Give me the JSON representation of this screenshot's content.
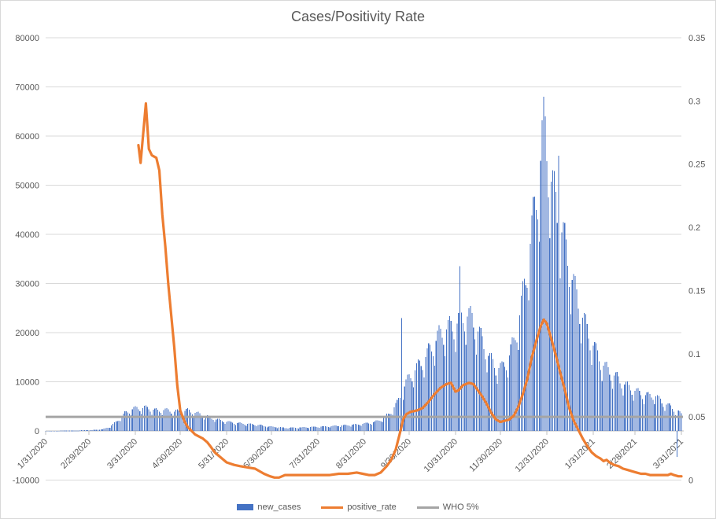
{
  "title": "Cases/Positivity Rate",
  "legend": [
    {
      "label": "new_cases",
      "type": "bar",
      "color": "#4472C4"
    },
    {
      "label": "positive_rate",
      "type": "line",
      "color": "#ED7D31"
    },
    {
      "label": "WHO 5%",
      "type": "line",
      "color": "#A5A5A5"
    }
  ],
  "colors": {
    "bars": "#4472C4",
    "rate_line": "#ED7D31",
    "who_line": "#A5A5A5",
    "gridline": "#D9D9D9",
    "axis_line": "#BFBFBF",
    "text": "#595959",
    "title": "#595959"
  },
  "chart_data": {
    "type": "bar",
    "title": "Cases/Positivity Rate",
    "xlabel": "",
    "ylabel": "",
    "grid": true,
    "legend_position": "bottom",
    "left_axis": {
      "min": -10000,
      "max": 80000,
      "step": 10000,
      "tick_labels": [
        "80000",
        "70000",
        "60000",
        "50000",
        "40000",
        "30000",
        "20000",
        "10000",
        "0",
        "-10000"
      ]
    },
    "right_axis": {
      "min": 0,
      "max": 0.35,
      "step": 0.05,
      "tick_labels": [
        "0.35",
        "0.3",
        "0.25",
        "0.2",
        "0.15",
        "0.1",
        "0.05",
        "0"
      ]
    },
    "x_tick_labels": [
      "1/31/2020",
      "2/29/2020",
      "3/31/2020",
      "4/30/2020",
      "5/31/2020",
      "6/30/2020",
      "7/31/2020",
      "8/31/2020",
      "9/30/2020",
      "10/31/2020",
      "11/30/2020",
      "12/31/2020",
      "1/31/2021",
      "2/28/2021",
      "3/31/2021"
    ],
    "x_tick_days": [
      0,
      29,
      60,
      90,
      121,
      151,
      182,
      213,
      243,
      274,
      304,
      335,
      366,
      394,
      425
    ],
    "days_total": 425,
    "series": [
      {
        "name": "new_cases",
        "axis": "left",
        "render": "daily-bars",
        "anchors": [
          [
            0,
            25
          ],
          [
            10,
            45
          ],
          [
            20,
            90
          ],
          [
            30,
            170
          ],
          [
            38,
            350
          ],
          [
            43,
            900
          ],
          [
            48,
            2200
          ],
          [
            53,
            3800
          ],
          [
            58,
            4700
          ],
          [
            62,
            4900
          ],
          [
            66,
            5000
          ],
          [
            70,
            4800
          ],
          [
            75,
            4300
          ],
          [
            78,
            4600
          ],
          [
            82,
            4400
          ],
          [
            86,
            4200
          ],
          [
            90,
            4200
          ],
          [
            95,
            4400
          ],
          [
            100,
            3900
          ],
          [
            105,
            3400
          ],
          [
            110,
            2900
          ],
          [
            115,
            2400
          ],
          [
            121,
            2000
          ],
          [
            128,
            1700
          ],
          [
            135,
            1500
          ],
          [
            142,
            1300
          ],
          [
            148,
            1000
          ],
          [
            155,
            820
          ],
          [
            160,
            650
          ],
          [
            168,
            700
          ],
          [
            176,
            800
          ],
          [
            184,
            900
          ],
          [
            192,
            1050
          ],
          [
            200,
            1200
          ],
          [
            208,
            1400
          ],
          [
            214,
            1600
          ],
          [
            220,
            1900
          ],
          [
            225,
            2600
          ],
          [
            230,
            3800
          ],
          [
            235,
            6000
          ],
          [
            239,
            9000
          ],
          [
            243,
            11500
          ],
          [
            248,
            13500
          ],
          [
            253,
            15500
          ],
          [
            258,
            18000
          ],
          [
            263,
            20500
          ],
          [
            268,
            22000
          ],
          [
            272,
            22500
          ],
          [
            276,
            23500
          ],
          [
            281,
            25000
          ],
          [
            285,
            24000
          ],
          [
            289,
            21500
          ],
          [
            293,
            18500
          ],
          [
            297,
            15500
          ],
          [
            301,
            13800
          ],
          [
            305,
            13500
          ],
          [
            309,
            15500
          ],
          [
            313,
            19000
          ],
          [
            317,
            25000
          ],
          [
            321,
            33000
          ],
          [
            325,
            43000
          ],
          [
            328,
            50000
          ],
          [
            330,
            55000
          ],
          [
            332,
            62000
          ],
          [
            334,
            64000
          ],
          [
            336,
            58000
          ],
          [
            339,
            52000
          ],
          [
            342,
            47000
          ],
          [
            345,
            43000
          ],
          [
            348,
            39000
          ],
          [
            351,
            34000
          ],
          [
            354,
            30000
          ],
          [
            357,
            26500
          ],
          [
            360,
            23500
          ],
          [
            364,
            20000
          ],
          [
            368,
            17000
          ],
          [
            372,
            14500
          ],
          [
            376,
            13000
          ],
          [
            380,
            12000
          ],
          [
            384,
            10800
          ],
          [
            388,
            9800
          ],
          [
            392,
            9000
          ],
          [
            396,
            8300
          ],
          [
            400,
            7800
          ],
          [
            404,
            7500
          ],
          [
            407,
            7800
          ],
          [
            410,
            6800
          ],
          [
            413,
            6000
          ],
          [
            416,
            5500
          ],
          [
            419,
            5000
          ],
          [
            422,
            4300
          ],
          [
            425,
            3600
          ]
        ],
        "outlier_days": [
          [
            238,
            23000
          ],
          [
            277,
            33500
          ],
          [
            333,
            68000
          ],
          [
            343,
            56000
          ],
          [
            422,
            -5300
          ]
        ]
      },
      {
        "name": "positive_rate",
        "axis": "right",
        "render": "line",
        "points": [
          [
            62,
            0.265
          ],
          [
            63.5,
            0.251
          ],
          [
            67,
            0.298
          ],
          [
            69,
            0.262
          ],
          [
            71,
            0.257
          ],
          [
            74,
            0.255
          ],
          [
            76,
            0.245
          ],
          [
            78,
            0.21
          ],
          [
            80,
            0.185
          ],
          [
            82,
            0.155
          ],
          [
            84,
            0.13
          ],
          [
            86,
            0.105
          ],
          [
            88,
            0.075
          ],
          [
            90,
            0.055
          ],
          [
            93,
            0.046
          ],
          [
            95,
            0.042
          ],
          [
            100,
            0.036
          ],
          [
            105,
            0.033
          ],
          [
            108,
            0.03
          ],
          [
            110,
            0.027
          ],
          [
            113,
            0.022
          ],
          [
            116,
            0.019
          ],
          [
            121,
            0.014
          ],
          [
            126,
            0.012
          ],
          [
            130,
            0.011
          ],
          [
            135,
            0.01
          ],
          [
            140,
            0.009
          ],
          [
            143,
            0.007
          ],
          [
            146,
            0.005
          ],
          [
            150,
            0.003
          ],
          [
            153,
            0.002
          ],
          [
            156,
            0.002
          ],
          [
            160,
            0.004
          ],
          [
            166,
            0.004
          ],
          [
            172,
            0.004
          ],
          [
            178,
            0.004
          ],
          [
            184,
            0.004
          ],
          [
            190,
            0.004
          ],
          [
            196,
            0.005
          ],
          [
            202,
            0.005
          ],
          [
            208,
            0.006
          ],
          [
            212,
            0.005
          ],
          [
            216,
            0.004
          ],
          [
            220,
            0.004
          ],
          [
            224,
            0.006
          ],
          [
            228,
            0.011
          ],
          [
            231,
            0.016
          ],
          [
            234,
            0.024
          ],
          [
            237,
            0.038
          ],
          [
            239,
            0.048
          ],
          [
            241,
            0.052
          ],
          [
            244,
            0.054
          ],
          [
            248,
            0.055
          ],
          [
            252,
            0.057
          ],
          [
            256,
            0.062
          ],
          [
            260,
            0.068
          ],
          [
            264,
            0.073
          ],
          [
            268,
            0.076
          ],
          [
            271,
            0.077
          ],
          [
            274,
            0.07
          ],
          [
            276,
            0.071
          ],
          [
            279,
            0.075
          ],
          [
            283,
            0.077
          ],
          [
            286,
            0.076
          ],
          [
            289,
            0.071
          ],
          [
            292,
            0.066
          ],
          [
            295,
            0.06
          ],
          [
            298,
            0.053
          ],
          [
            301,
            0.048
          ],
          [
            304,
            0.046
          ],
          [
            307,
            0.047
          ],
          [
            310,
            0.048
          ],
          [
            313,
            0.051
          ],
          [
            316,
            0.058
          ],
          [
            319,
            0.068
          ],
          [
            322,
            0.08
          ],
          [
            325,
            0.097
          ],
          [
            328,
            0.11
          ],
          [
            331,
            0.122
          ],
          [
            333,
            0.127
          ],
          [
            335,
            0.124
          ],
          [
            338,
            0.112
          ],
          [
            341,
            0.099
          ],
          [
            344,
            0.085
          ],
          [
            347,
            0.072
          ],
          [
            350,
            0.057
          ],
          [
            353,
            0.047
          ],
          [
            356,
            0.04
          ],
          [
            359,
            0.033
          ],
          [
            362,
            0.027
          ],
          [
            365,
            0.022
          ],
          [
            368,
            0.019
          ],
          [
            371,
            0.017
          ],
          [
            373,
            0.015
          ],
          [
            375,
            0.016
          ],
          [
            377,
            0.014
          ],
          [
            380,
            0.012
          ],
          [
            383,
            0.011
          ],
          [
            386,
            0.009
          ],
          [
            389,
            0.008
          ],
          [
            392,
            0.007
          ],
          [
            395,
            0.006
          ],
          [
            398,
            0.005
          ],
          [
            401,
            0.005
          ],
          [
            404,
            0.004
          ],
          [
            407,
            0.004
          ],
          [
            410,
            0.004
          ],
          [
            413,
            0.004
          ],
          [
            416,
            0.004
          ],
          [
            418,
            0.005
          ],
          [
            420,
            0.004
          ],
          [
            423,
            0.003
          ],
          [
            425,
            0.003
          ]
        ]
      },
      {
        "name": "WHO 5%",
        "axis": "right",
        "render": "hline",
        "value": 0.05
      }
    ]
  }
}
